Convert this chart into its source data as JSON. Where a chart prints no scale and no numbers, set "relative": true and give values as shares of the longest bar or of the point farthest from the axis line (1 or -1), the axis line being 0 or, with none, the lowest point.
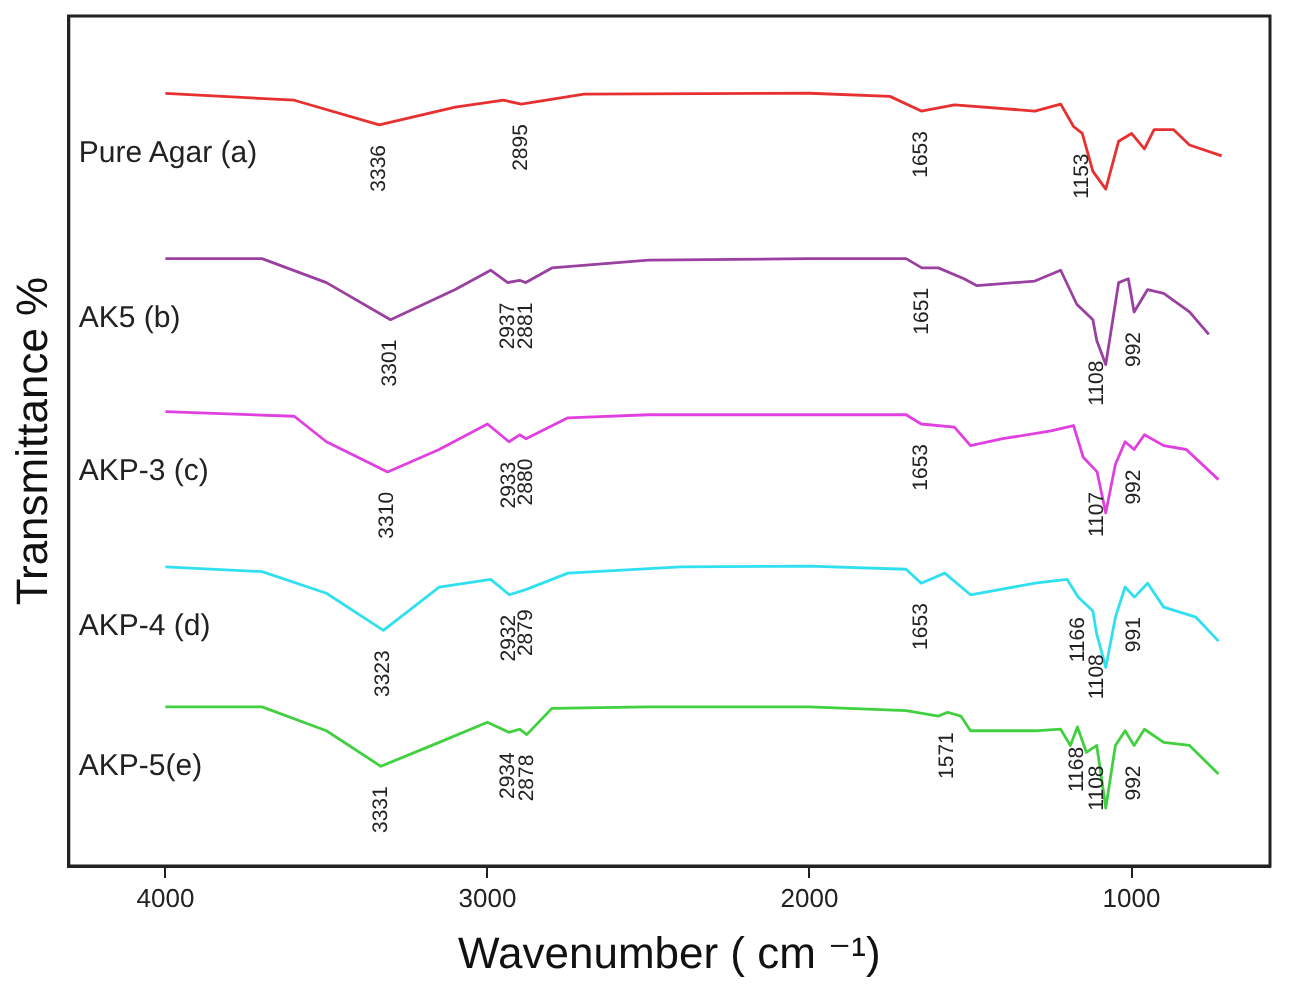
{
  "chart_data": {
    "type": "line",
    "xlabel": "Wavenumber ( cm ⁻¹)",
    "ylabel": "Transmittance %",
    "relative": true,
    "legend": false,
    "grid": false,
    "marker": "none",
    "line_style": "solid",
    "xlim": [
      4300,
      570
    ],
    "xticks": [
      4000,
      3000,
      2000,
      1000
    ],
    "tick_labels": "x",
    "series": [
      {
        "name": "Pure Agar (a)",
        "color": "#e83030",
        "x": [
          4000,
          3600,
          3336,
          3100,
          2950,
          2895,
          2700,
          2000,
          1750,
          1653,
          1550,
          1300,
          1220,
          1180,
          1153,
          1120,
          1080,
          1040,
          1000,
          960,
          930,
          870,
          820,
          720
        ],
        "values": [
          1.0,
          0.991,
          0.959,
          0.982,
          0.991,
          0.986,
          0.999,
          1.0,
          0.996,
          0.977,
          0.985,
          0.977,
          0.986,
          0.957,
          0.948,
          0.899,
          0.876,
          0.938,
          0.948,
          0.928,
          0.953,
          0.953,
          0.933,
          0.919
        ]
      },
      {
        "name": "AK5 (b)",
        "color": "#9a40a0",
        "x": [
          4000,
          3700,
          3500,
          3301,
          3100,
          2990,
          2937,
          2900,
          2881,
          2800,
          2500,
          2000,
          1700,
          1651,
          1600,
          1520,
          1480,
          1300,
          1220,
          1170,
          1120,
          1108,
          1080,
          1040,
          1010,
          992,
          950,
          900,
          820,
          760
        ],
        "values": [
          0.786,
          0.786,
          0.755,
          0.707,
          0.746,
          0.771,
          0.755,
          0.758,
          0.755,
          0.774,
          0.784,
          0.786,
          0.786,
          0.774,
          0.774,
          0.76,
          0.751,
          0.757,
          0.771,
          0.727,
          0.707,
          0.68,
          0.649,
          0.755,
          0.76,
          0.717,
          0.746,
          0.741,
          0.717,
          0.688
        ]
      },
      {
        "name": "AKP-3 (c)",
        "color": "#e040e0",
        "x": [
          4000,
          3600,
          3500,
          3310,
          3150,
          3000,
          2933,
          2900,
          2880,
          2750,
          2500,
          2000,
          1700,
          1653,
          1550,
          1500,
          1400,
          1250,
          1180,
          1150,
          1107,
          1080,
          1050,
          1020,
          992,
          960,
          900,
          830,
          730
        ],
        "values": [
          0.588,
          0.582,
          0.549,
          0.51,
          0.539,
          0.572,
          0.549,
          0.558,
          0.553,
          0.58,
          0.584,
          0.584,
          0.584,
          0.572,
          0.568,
          0.544,
          0.553,
          0.563,
          0.57,
          0.529,
          0.51,
          0.457,
          0.52,
          0.549,
          0.539,
          0.558,
          0.544,
          0.539,
          0.5
        ]
      },
      {
        "name": "AKP-4 (d)",
        "color": "#30e0f0",
        "x": [
          4000,
          3700,
          3500,
          3323,
          3150,
          2990,
          2932,
          2879,
          2750,
          2400,
          2000,
          1700,
          1653,
          1580,
          1500,
          1300,
          1200,
          1166,
          1120,
          1108,
          1080,
          1050,
          1020,
          991,
          950,
          900,
          800,
          730
        ],
        "values": [
          0.387,
          0.381,
          0.353,
          0.305,
          0.361,
          0.371,
          0.351,
          0.358,
          0.379,
          0.387,
          0.388,
          0.384,
          0.366,
          0.379,
          0.351,
          0.366,
          0.371,
          0.348,
          0.33,
          0.3,
          0.257,
          0.322,
          0.361,
          0.348,
          0.366,
          0.335,
          0.322,
          0.291
        ]
      },
      {
        "name": "AKP-5(e)",
        "color": "#40d040",
        "x": [
          4000,
          3700,
          3500,
          3331,
          3150,
          3000,
          2934,
          2900,
          2878,
          2800,
          2500,
          2000,
          1700,
          1600,
          1571,
          1530,
          1500,
          1300,
          1220,
          1190,
          1168,
          1140,
          1108,
          1080,
          1050,
          1020,
          992,
          960,
          900,
          820,
          730
        ],
        "values": [
          0.206,
          0.206,
          0.175,
          0.129,
          0.16,
          0.186,
          0.173,
          0.177,
          0.17,
          0.204,
          0.206,
          0.206,
          0.201,
          0.194,
          0.199,
          0.194,
          0.175,
          0.175,
          0.177,
          0.156,
          0.18,
          0.147,
          0.156,
          0.075,
          0.156,
          0.175,
          0.156,
          0.177,
          0.16,
          0.156,
          0.119
        ]
      }
    ],
    "annotations": [
      {
        "text": "3336",
        "x": 3336,
        "y": 0.959
      },
      {
        "text": "2895",
        "x": 2895,
        "y": 0.986
      },
      {
        "text": "1653",
        "x": 1653,
        "y": 0.977
      },
      {
        "text": "1153",
        "x": 1153,
        "y": 0.948
      },
      {
        "text": "3301",
        "x": 3301,
        "y": 0.707
      },
      {
        "text": "2937",
        "x": 2937,
        "y": 0.755
      },
      {
        "text": "2881",
        "x": 2881,
        "y": 0.755
      },
      {
        "text": "1651",
        "x": 1651,
        "y": 0.774
      },
      {
        "text": "1108",
        "x": 1108,
        "y": 0.68
      },
      {
        "text": "992",
        "x": 992,
        "y": 0.717
      },
      {
        "text": "3310",
        "x": 3310,
        "y": 0.51
      },
      {
        "text": "2933",
        "x": 2933,
        "y": 0.549
      },
      {
        "text": "2880",
        "x": 2880,
        "y": 0.553
      },
      {
        "text": "1653",
        "x": 1653,
        "y": 0.572
      },
      {
        "text": "1107",
        "x": 1107,
        "y": 0.51
      },
      {
        "text": "992",
        "x": 992,
        "y": 0.539
      },
      {
        "text": "3323",
        "x": 3323,
        "y": 0.305
      },
      {
        "text": "2932",
        "x": 2932,
        "y": 0.351
      },
      {
        "text": "2879",
        "x": 2879,
        "y": 0.358
      },
      {
        "text": "1653",
        "x": 1653,
        "y": 0.366
      },
      {
        "text": "1166",
        "x": 1166,
        "y": 0.348
      },
      {
        "text": "1108",
        "x": 1108,
        "y": 0.3
      },
      {
        "text": "991",
        "x": 991,
        "y": 0.348
      },
      {
        "text": "3331",
        "x": 3331,
        "y": 0.129
      },
      {
        "text": "2934",
        "x": 2934,
        "y": 0.173
      },
      {
        "text": "2878",
        "x": 2878,
        "y": 0.17
      },
      {
        "text": "1571",
        "x": 1571,
        "y": 0.199
      },
      {
        "text": "1168",
        "x": 1168,
        "y": 0.18
      },
      {
        "text": "1108",
        "x": 1108,
        "y": 0.156
      },
      {
        "text": "992",
        "x": 992,
        "y": 0.156
      }
    ]
  }
}
